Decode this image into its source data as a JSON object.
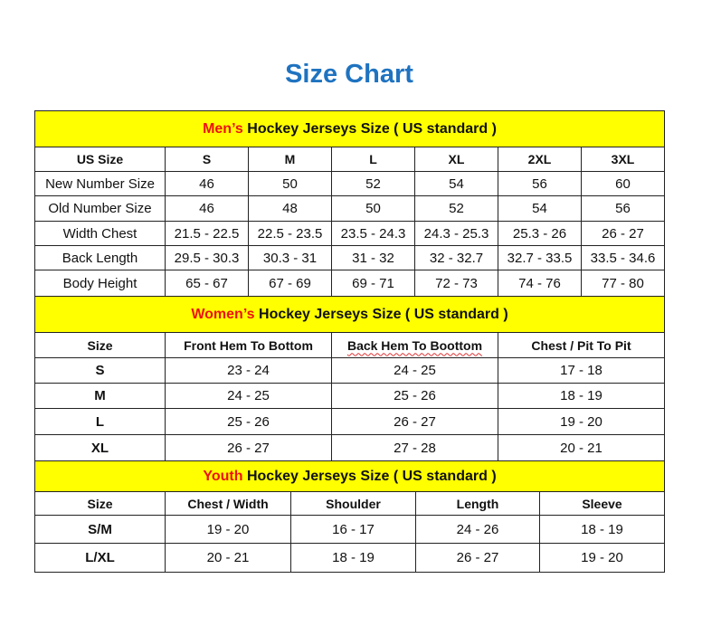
{
  "title": "Size Chart",
  "colors": {
    "title": "#1f73c0",
    "band": "#ffff00",
    "highlight": "#ee1111"
  },
  "men": {
    "band_highlight": "Men’s",
    "band_rest": " Hockey Jerseys Size ( US standard )",
    "headers": [
      "US Size",
      "S",
      "M",
      "L",
      "XL",
      "2XL",
      "3XL"
    ],
    "rows": [
      [
        "New Number Size",
        "46",
        "50",
        "52",
        "54",
        "56",
        "60"
      ],
      [
        "Old Number Size",
        "46",
        "48",
        "50",
        "52",
        "54",
        "56"
      ],
      [
        "Width Chest",
        "21.5 - 22.5",
        "22.5 - 23.5",
        "23.5 - 24.3",
        "24.3 - 25.3",
        "25.3 - 26",
        "26 - 27"
      ],
      [
        "Back Length",
        "29.5 - 30.3",
        "30.3 - 31",
        "31 - 32",
        "32 - 32.7",
        "32.7 - 33.5",
        "33.5 - 34.6"
      ],
      [
        "Body Height",
        "65 - 67",
        "67 - 69",
        "69 - 71",
        "72 - 73",
        "74 - 76",
        "77 - 80"
      ]
    ]
  },
  "women": {
    "band_highlight": "Women’s",
    "band_rest": " Hockey Jerseys Size ( US standard )",
    "headers": [
      "Size",
      "Front Hem To Bottom",
      "Back Hem To Boottom",
      "Chest / Pit To Pit"
    ],
    "rows": [
      [
        "S",
        "23 - 24",
        "24 - 25",
        "17 - 18"
      ],
      [
        "M",
        "24 - 25",
        "25 - 26",
        "18 - 19"
      ],
      [
        "L",
        "25 - 26",
        "26 - 27",
        "19 - 20"
      ],
      [
        "XL",
        "26 - 27",
        "27 - 28",
        "20 - 21"
      ]
    ]
  },
  "youth": {
    "band_highlight": "Youth",
    "band_rest": " Hockey Jerseys Size ( US standard )",
    "headers": [
      "Size",
      "Chest / Width",
      "Shoulder",
      "Length",
      "Sleeve"
    ],
    "rows": [
      [
        "S/M",
        "19 - 20",
        "16 - 17",
        "24 - 26",
        "18 - 19"
      ],
      [
        "L/XL",
        "20 - 21",
        "18 - 19",
        "26 - 27",
        "19 - 20"
      ]
    ]
  }
}
